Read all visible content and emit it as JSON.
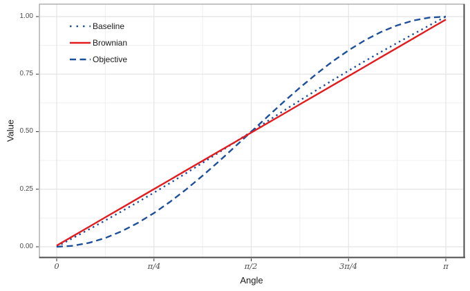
{
  "colors": {
    "series_red": "#e41a1c",
    "series_navy": "#1e4f9b",
    "grid_major": "#e4e4e4",
    "grid_minor": "#efefef",
    "border_light": "#8a8a8a",
    "border_dark": "#4b4b4b",
    "tick": "#333333",
    "tick_label": "#4d4d4d",
    "text": "#1a1a1a",
    "background": "#ffffff"
  },
  "chart_data": {
    "type": "line",
    "title": "",
    "xlabel": "Angle",
    "ylabel": "Value",
    "x_unit": "angle in multiples of π radians (0 .. π)",
    "xlim_pi": [
      0,
      1
    ],
    "ylim": [
      0,
      1
    ],
    "grid": "major and minor light-gray gridlines on white panel, gray panel border",
    "legend_position": "inside top-left, no box",
    "x_ticks": [
      {
        "t": 0,
        "label": "0"
      },
      {
        "t": 0.25,
        "label": "π/4"
      },
      {
        "t": 0.5,
        "label": "π/2"
      },
      {
        "t": 0.75,
        "label": "3π/4"
      },
      {
        "t": 1,
        "label": "π"
      }
    ],
    "y_ticks": [
      {
        "v": 0,
        "label": "0.00"
      },
      {
        "v": 0.25,
        "label": "0.25"
      },
      {
        "v": 0.5,
        "label": "0.50"
      },
      {
        "v": 0.75,
        "label": "0.75"
      },
      {
        "v": 1,
        "label": "1.00"
      }
    ],
    "x_minor": [
      0.125,
      0.375,
      0.625,
      0.875
    ],
    "y_minor": [
      0.125,
      0.375,
      0.625,
      0.875
    ],
    "x": [
      0,
      0.0417,
      0.0833,
      0.125,
      0.1667,
      0.2083,
      0.25,
      0.2917,
      0.3333,
      0.375,
      0.4167,
      0.4583,
      0.5,
      0.5417,
      0.5833,
      0.625,
      0.6667,
      0.7083,
      0.75,
      0.7917,
      0.8333,
      0.875,
      0.9167,
      0.9583,
      1
    ],
    "series": [
      {
        "name": "Baseline",
        "color": "#1e4f9b",
        "linetype": "dotted",
        "values": [
          0,
          0.0378,
          0.0758,
          0.1144,
          0.1537,
          0.1938,
          0.235,
          0.2772,
          0.3203,
          0.3644,
          0.4092,
          0.4544,
          0.5,
          0.5456,
          0.5908,
          0.6356,
          0.6797,
          0.7228,
          0.765,
          0.8062,
          0.8463,
          0.8856,
          0.9242,
          0.9622,
          1
        ]
      },
      {
        "name": "Brownian",
        "color": "#e41a1c",
        "linetype": "solid",
        "values": [
          0.005,
          0.0459,
          0.0868,
          0.1278,
          0.1687,
          0.2096,
          0.2505,
          0.2914,
          0.3323,
          0.3733,
          0.4142,
          0.4551,
          0.496,
          0.5369,
          0.5778,
          0.6188,
          0.6597,
          0.7006,
          0.7415,
          0.7824,
          0.8233,
          0.8643,
          0.9052,
          0.9461,
          0.987
        ]
      },
      {
        "name": "Objective",
        "color": "#1e4f9b",
        "linetype": "dashed",
        "values": [
          0,
          0.0043,
          0.017,
          0.0381,
          0.067,
          0.1033,
          0.1464,
          0.1956,
          0.25,
          0.3087,
          0.3706,
          0.4347,
          0.5,
          0.5653,
          0.6294,
          0.6913,
          0.75,
          0.8044,
          0.8536,
          0.8967,
          0.933,
          0.9619,
          0.9829,
          0.9957,
          1
        ]
      }
    ]
  }
}
